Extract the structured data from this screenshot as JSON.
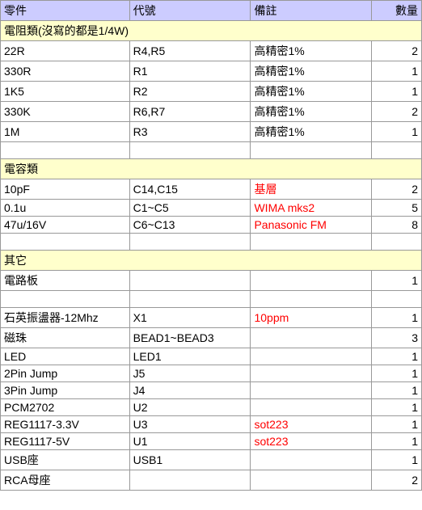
{
  "header": {
    "c1": "零件",
    "c2": "代號",
    "c3": "備註",
    "c4": "數量"
  },
  "rows": [
    {
      "type": "section",
      "label": "電阻類(沒寫的都是1/4W)"
    },
    {
      "type": "data",
      "c1": "22R",
      "c2": "R4,R5",
      "c3": "高精密1%",
      "c3red": false,
      "c4": "2"
    },
    {
      "type": "data",
      "c1": "330R",
      "c2": "R1",
      "c3": "高精密1%",
      "c3red": false,
      "c4": "1"
    },
    {
      "type": "data",
      "c1": "1K5",
      "c2": "R2",
      "c3": "高精密1%",
      "c3red": false,
      "c4": "1"
    },
    {
      "type": "data",
      "c1": "330K",
      "c2": "R6,R7",
      "c3": "高精密1%",
      "c3red": false,
      "c4": "2"
    },
    {
      "type": "data",
      "c1": "1M",
      "c2": "R3",
      "c3": "高精密1%",
      "c3red": false,
      "c4": "1"
    },
    {
      "type": "empty"
    },
    {
      "type": "section",
      "label": "電容類"
    },
    {
      "type": "data",
      "c1": "10pF",
      "c2": "C14,C15",
      "c3": "基層",
      "c3red": true,
      "c4": "2"
    },
    {
      "type": "data",
      "c1": "0.1u",
      "c2": "C1~C5",
      "c3": "WIMA mks2",
      "c3red": true,
      "c4": "5"
    },
    {
      "type": "data",
      "c1": "47u/16V",
      "c2": "C6~C13",
      "c3": "Panasonic FM",
      "c3red": true,
      "c4": "8"
    },
    {
      "type": "empty"
    },
    {
      "type": "section",
      "label": "其它"
    },
    {
      "type": "data",
      "c1": "電路板",
      "c2": "",
      "c3": "",
      "c3red": false,
      "c4": "1"
    },
    {
      "type": "empty"
    },
    {
      "type": "data",
      "c1": "石英振盪器-12Mhz",
      "c2": "X1",
      "c3": "10ppm",
      "c3red": true,
      "c4": "1"
    },
    {
      "type": "data",
      "c1": "磁珠",
      "c2": "BEAD1~BEAD3",
      "c3": "",
      "c3red": false,
      "c4": "3"
    },
    {
      "type": "data",
      "c1": "LED",
      "c2": "LED1",
      "c3": "",
      "c3red": false,
      "c4": "1"
    },
    {
      "type": "data",
      "c1": "2Pin Jump",
      "c2": "J5",
      "c3": "",
      "c3red": false,
      "c4": "1"
    },
    {
      "type": "data",
      "c1": "3Pin Jump",
      "c2": "J4",
      "c3": "",
      "c3red": false,
      "c4": "1"
    },
    {
      "type": "data",
      "c1": "PCM2702",
      "c2": "U2",
      "c3": "",
      "c3red": false,
      "c4": "1"
    },
    {
      "type": "data",
      "c1": "REG1117-3.3V",
      "c2": "U3",
      "c3": "sot223",
      "c3red": true,
      "c4": "1"
    },
    {
      "type": "data",
      "c1": "REG1117-5V",
      "c2": "U1",
      "c3": "sot223",
      "c3red": true,
      "c4": "1"
    },
    {
      "type": "data",
      "c1": "USB座",
      "c2": "USB1",
      "c3": "",
      "c3red": false,
      "c4": "1"
    },
    {
      "type": "data",
      "c1": "RCA母座",
      "c2": "",
      "c3": "",
      "c3red": false,
      "c4": "2"
    }
  ]
}
